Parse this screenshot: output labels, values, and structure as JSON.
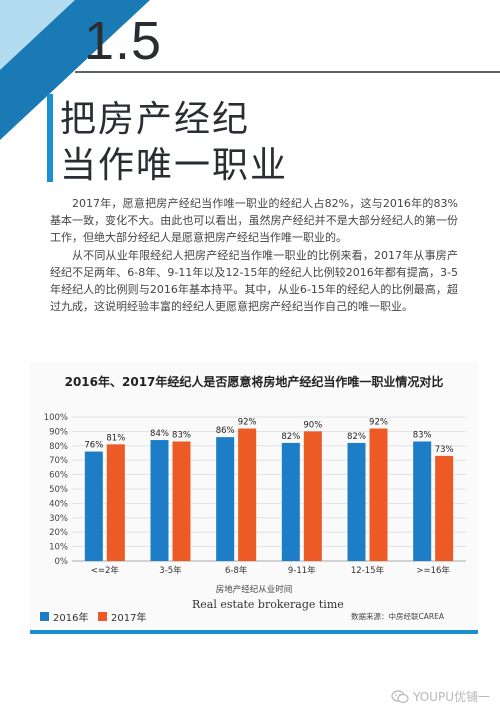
{
  "section": {
    "number": "1.5"
  },
  "title": {
    "line1": "把房产经纪",
    "line2": "当作唯一职业"
  },
  "paragraphs": [
    "2017年，愿意把房产经纪当作唯一职业的经纪人占82%，这与2016年的83%基本一致，变化不大。由此也可以看出，虽然房产经纪并不是大部分经纪人的第一份工作，但绝大部分经纪人是愿意把房产经纪当作唯一职业的。",
    "从不同从业年限经纪人把房产经纪当作唯一职业的比例来看，2017年从事房产经纪不足两年、6-8年、9-11年以及12-15年的经纪人比例较2016年都有提高，3-5年经纪人的比例则与2016年基本持平。其中，从业6-15年的经纪人的比例最高，超过九成，这说明经验丰富的经纪人更愿意把房产经纪当作自己的唯一职业。"
  ],
  "colors": {
    "accent": "#1b8fd1",
    "series_2016": "#1e7dc7",
    "series_2017": "#ec5a25",
    "corner_dark": "#1a7ab5",
    "corner_light": "#b3dcf0"
  },
  "chart_data": {
    "type": "bar",
    "title": "2016年、2017年经纪人是否愿意将房地产经纪当作唯一职业情况对比",
    "xlabel": "房地产经纪从业时间",
    "xlabel_en": "Real estate brokerage time",
    "ylabel": "",
    "ylim": [
      0,
      100
    ],
    "yticks": [
      "0%",
      "10%",
      "20%",
      "30%",
      "40%",
      "50%",
      "60%",
      "70%",
      "80%",
      "90%",
      "100%"
    ],
    "grid": true,
    "legend_position": "bottom-left",
    "categories": [
      "<=2年",
      "3-5年",
      "6-8年",
      "9-11年",
      "12-15年",
      ">=16年"
    ],
    "series": [
      {
        "name": "2016年",
        "values": [
          76,
          84,
          86,
          82,
          82,
          83
        ],
        "labels": [
          "76%",
          "84%",
          "86%",
          "82%",
          "82%",
          "83%"
        ],
        "color": "#1e7dc7"
      },
      {
        "name": "2017年",
        "values": [
          81,
          83,
          92,
          90,
          92,
          73
        ],
        "labels": [
          "81%",
          "83%",
          "92%",
          "90%",
          "92%",
          "73%"
        ],
        "color": "#ec5a25"
      }
    ],
    "source": "数据来源：中房经联CAREA"
  },
  "watermark": {
    "text": "YOUPU优铺一",
    "icon": "wechat-icon"
  }
}
